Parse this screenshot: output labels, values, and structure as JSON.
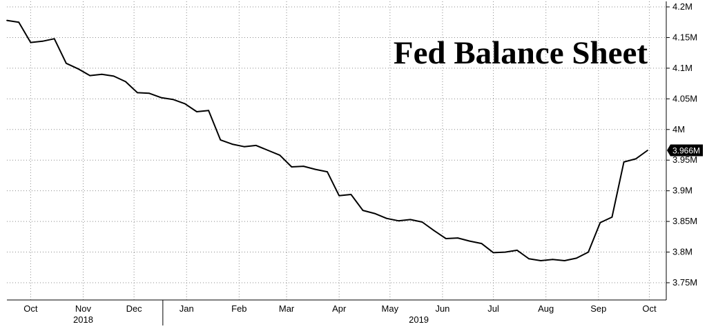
{
  "chart_data": {
    "type": "line",
    "title": "Fed Balance Sheet",
    "xlabel": "",
    "ylabel": "",
    "ylim": [
      3.72,
      4.2
    ],
    "y_ticks": [
      {
        "value": 4.2,
        "label": "4.2M"
      },
      {
        "value": 4.15,
        "label": "4.15M"
      },
      {
        "value": 4.1,
        "label": "4.1M"
      },
      {
        "value": 4.05,
        "label": "4.05M"
      },
      {
        "value": 4.0,
        "label": "4M"
      },
      {
        "value": 3.95,
        "label": "3.95M"
      },
      {
        "value": 3.9,
        "label": "3.9M"
      },
      {
        "value": 3.85,
        "label": "3.85M"
      },
      {
        "value": 3.8,
        "label": "3.8M"
      },
      {
        "value": 3.75,
        "label": "3.75M"
      }
    ],
    "x_ticks": [
      {
        "date": "2018-10-10",
        "label": "Oct"
      },
      {
        "date": "2018-11-10",
        "label": "Nov"
      },
      {
        "date": "2018-12-10",
        "label": "Dec"
      },
      {
        "date": "2019-01-10",
        "label": "Jan"
      },
      {
        "date": "2019-02-10",
        "label": "Feb"
      },
      {
        "date": "2019-03-10",
        "label": "Mar"
      },
      {
        "date": "2019-04-10",
        "label": "Apr"
      },
      {
        "date": "2019-05-10",
        "label": "May"
      },
      {
        "date": "2019-06-10",
        "label": "Jun"
      },
      {
        "date": "2019-07-10",
        "label": "Jul"
      },
      {
        "date": "2019-08-10",
        "label": "Aug"
      },
      {
        "date": "2019-09-10",
        "label": "Sep"
      },
      {
        "date": "2019-10-10",
        "label": "Oct"
      }
    ],
    "year_labels": [
      {
        "date": "2018-11-10",
        "label": "2018"
      },
      {
        "date": "2019-05-27",
        "label": "2019"
      }
    ],
    "year_divider_date": "2018-12-27",
    "grid": true,
    "last_value_label": "3.966M",
    "line_color": "#000000",
    "series": [
      {
        "x": [
          "2018-09-26",
          "2018-10-03",
          "2018-10-10",
          "2018-10-17",
          "2018-10-24",
          "2018-10-31",
          "2018-11-07",
          "2018-11-14",
          "2018-11-21",
          "2018-11-28",
          "2018-12-05",
          "2018-12-12",
          "2018-12-19",
          "2018-12-26",
          "2019-01-02",
          "2019-01-09",
          "2019-01-16",
          "2019-01-23",
          "2019-01-30",
          "2019-02-06",
          "2019-02-13",
          "2019-02-20",
          "2019-02-27",
          "2019-03-06",
          "2019-03-13",
          "2019-03-20",
          "2019-03-27",
          "2019-04-03",
          "2019-04-10",
          "2019-04-17",
          "2019-04-24",
          "2019-05-01",
          "2019-05-08",
          "2019-05-15",
          "2019-05-22",
          "2019-05-29",
          "2019-06-05",
          "2019-06-12",
          "2019-06-19",
          "2019-06-26",
          "2019-07-03",
          "2019-07-10",
          "2019-07-17",
          "2019-07-24",
          "2019-07-31",
          "2019-08-07",
          "2019-08-14",
          "2019-08-21",
          "2019-08-28",
          "2019-09-04",
          "2019-09-11",
          "2019-09-18",
          "2019-09-25",
          "2019-10-02",
          "2019-10-09"
        ],
        "values": [
          4.178,
          4.175,
          4.142,
          4.144,
          4.148,
          4.108,
          4.099,
          4.088,
          4.09,
          4.087,
          4.078,
          4.06,
          4.059,
          4.052,
          4.049,
          4.042,
          4.029,
          4.031,
          3.983,
          3.976,
          3.972,
          3.974,
          3.966,
          3.958,
          3.939,
          3.94,
          3.935,
          3.931,
          3.892,
          3.894,
          3.868,
          3.863,
          3.855,
          3.851,
          3.853,
          3.849,
          3.835,
          3.822,
          3.823,
          3.818,
          3.814,
          3.799,
          3.8,
          3.803,
          3.789,
          3.786,
          3.788,
          3.786,
          3.79,
          3.8,
          3.848,
          3.857,
          3.947,
          3.952,
          3.966
        ]
      }
    ]
  }
}
